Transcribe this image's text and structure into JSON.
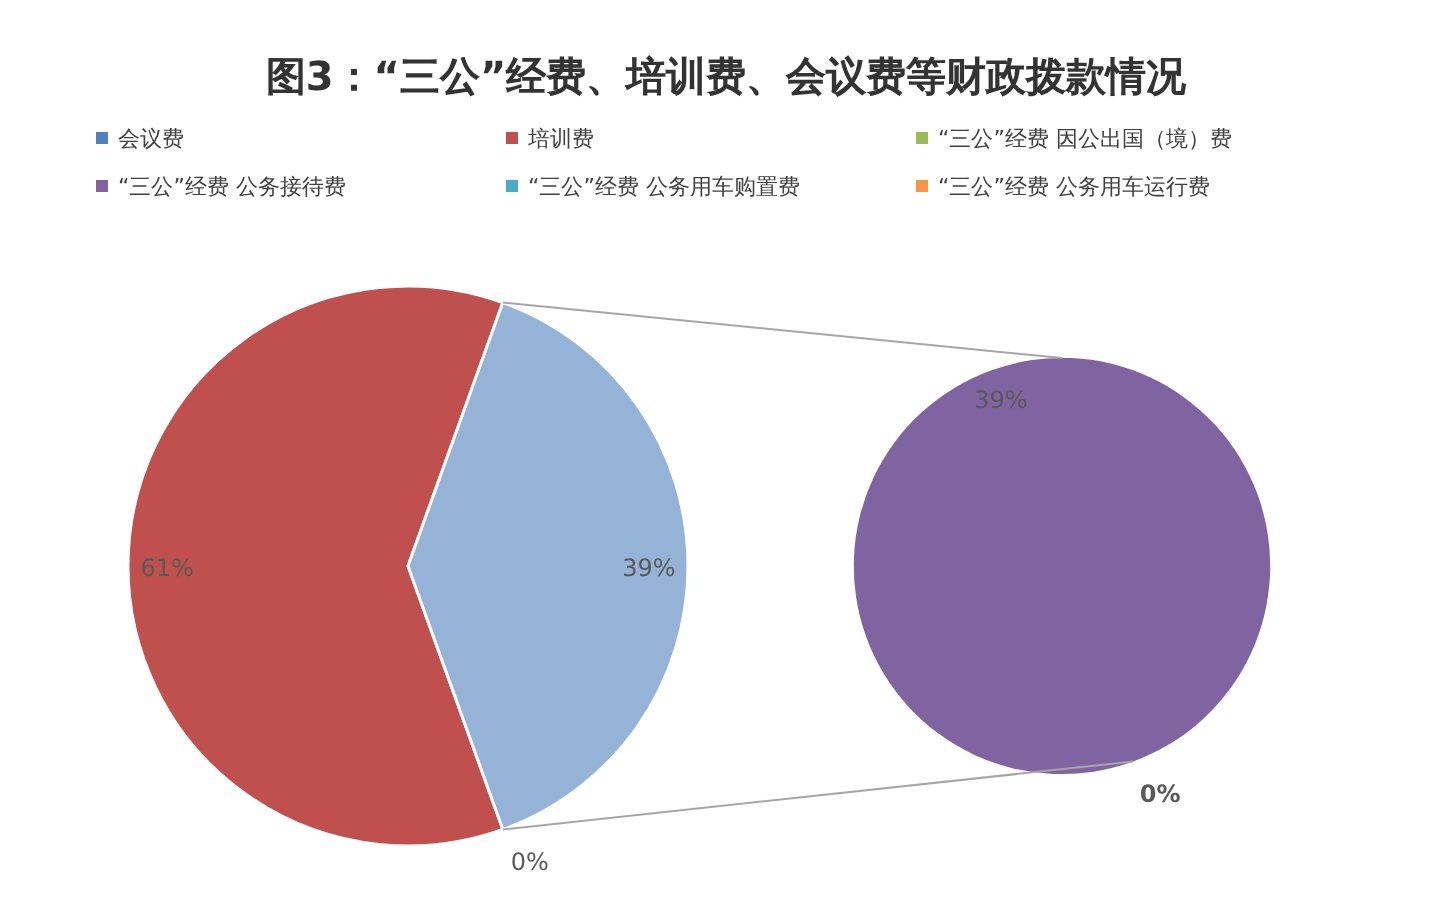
{
  "chart_data": [
    {
      "type": "pie",
      "title": "图3：“三公”经费、培训费、会议费等财政拨款情况",
      "categories": [
        "会议费",
        "培训费",
        null
      ],
      "values": [
        0,
        61,
        39
      ],
      "colors": [
        "#4f81bd",
        "#c0504d",
        "#95b3d7"
      ],
      "value_labels": [
        "0%",
        "61%",
        "39%"
      ],
      "legend": "top"
    },
    {
      "type": "pie",
      "categories": [
        "“三公”经费 因公出国（境）费",
        "“三公”经费 公务接待费",
        "“三公”经费 公务用车购置费",
        "“三公”经费 公务用车运行费"
      ],
      "values": [
        0,
        39,
        0,
        0
      ],
      "colors": [
        "#9bbb59",
        "#8064a2",
        "#4bacc6",
        "#f79646"
      ],
      "value_labels": [
        "0%",
        "39%",
        null,
        null
      ],
      "legend": "top"
    }
  ]
}
